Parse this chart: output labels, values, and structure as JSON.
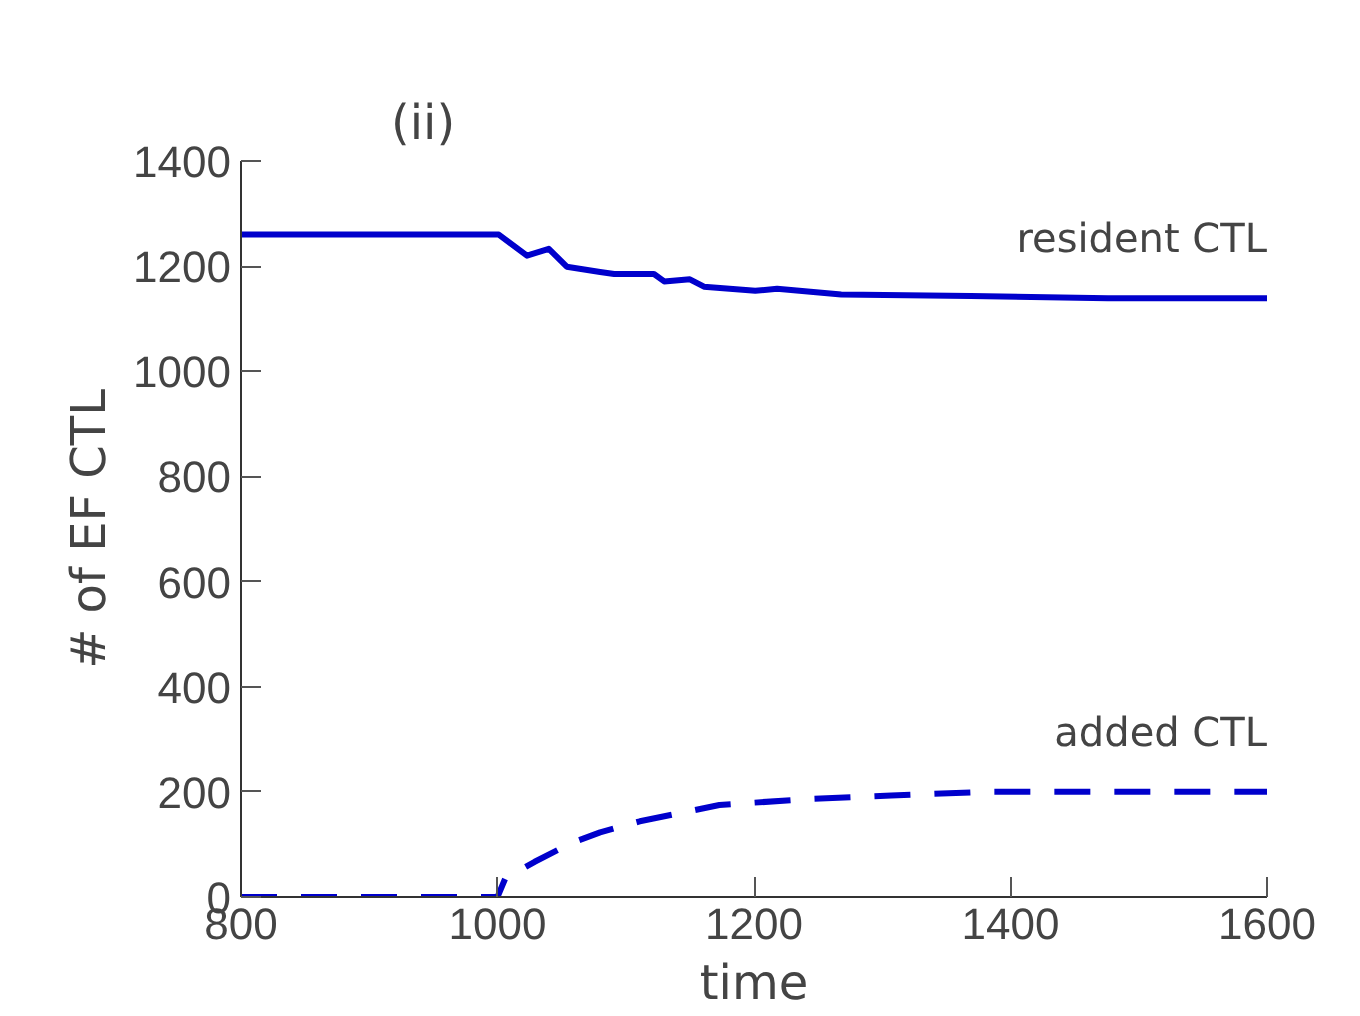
{
  "chart_data": {
    "type": "line",
    "title": "(ii)",
    "xlabel": "time",
    "ylabel": "# of EF CTL",
    "xlim": [
      800,
      1600
    ],
    "xticks": [
      800,
      1000,
      1200,
      1400,
      1600
    ],
    "ylim": [
      0,
      1400
    ],
    "yticks": [
      0,
      200,
      400,
      600,
      800,
      1000,
      1200,
      1400
    ],
    "grid": false,
    "legend": false,
    "marker": "none",
    "series": [
      {
        "name": "resident CTL",
        "color": "#0000cc",
        "line_style": "solid",
        "x": [
          800,
          1001,
          1023,
          1040,
          1054,
          1080,
          1091,
          1122,
          1130,
          1150,
          1161,
          1201,
          1218,
          1268,
          1369,
          1476,
          1600
        ],
        "values": [
          1260,
          1260,
          1220,
          1233,
          1199,
          1189,
          1185,
          1185,
          1171,
          1175,
          1161,
          1153,
          1157,
          1146,
          1143,
          1139,
          1139
        ]
      },
      {
        "name": "added CTL",
        "color": "#0000cc",
        "line_style": "dashed",
        "x": [
          800,
          1000,
          1006,
          1029,
          1057,
          1080,
          1111,
          1173,
          1240,
          1307,
          1380,
          1600
        ],
        "values": [
          0,
          0,
          35,
          67,
          102,
          123,
          144,
          175,
          186,
          193,
          200,
          200
        ]
      }
    ]
  }
}
